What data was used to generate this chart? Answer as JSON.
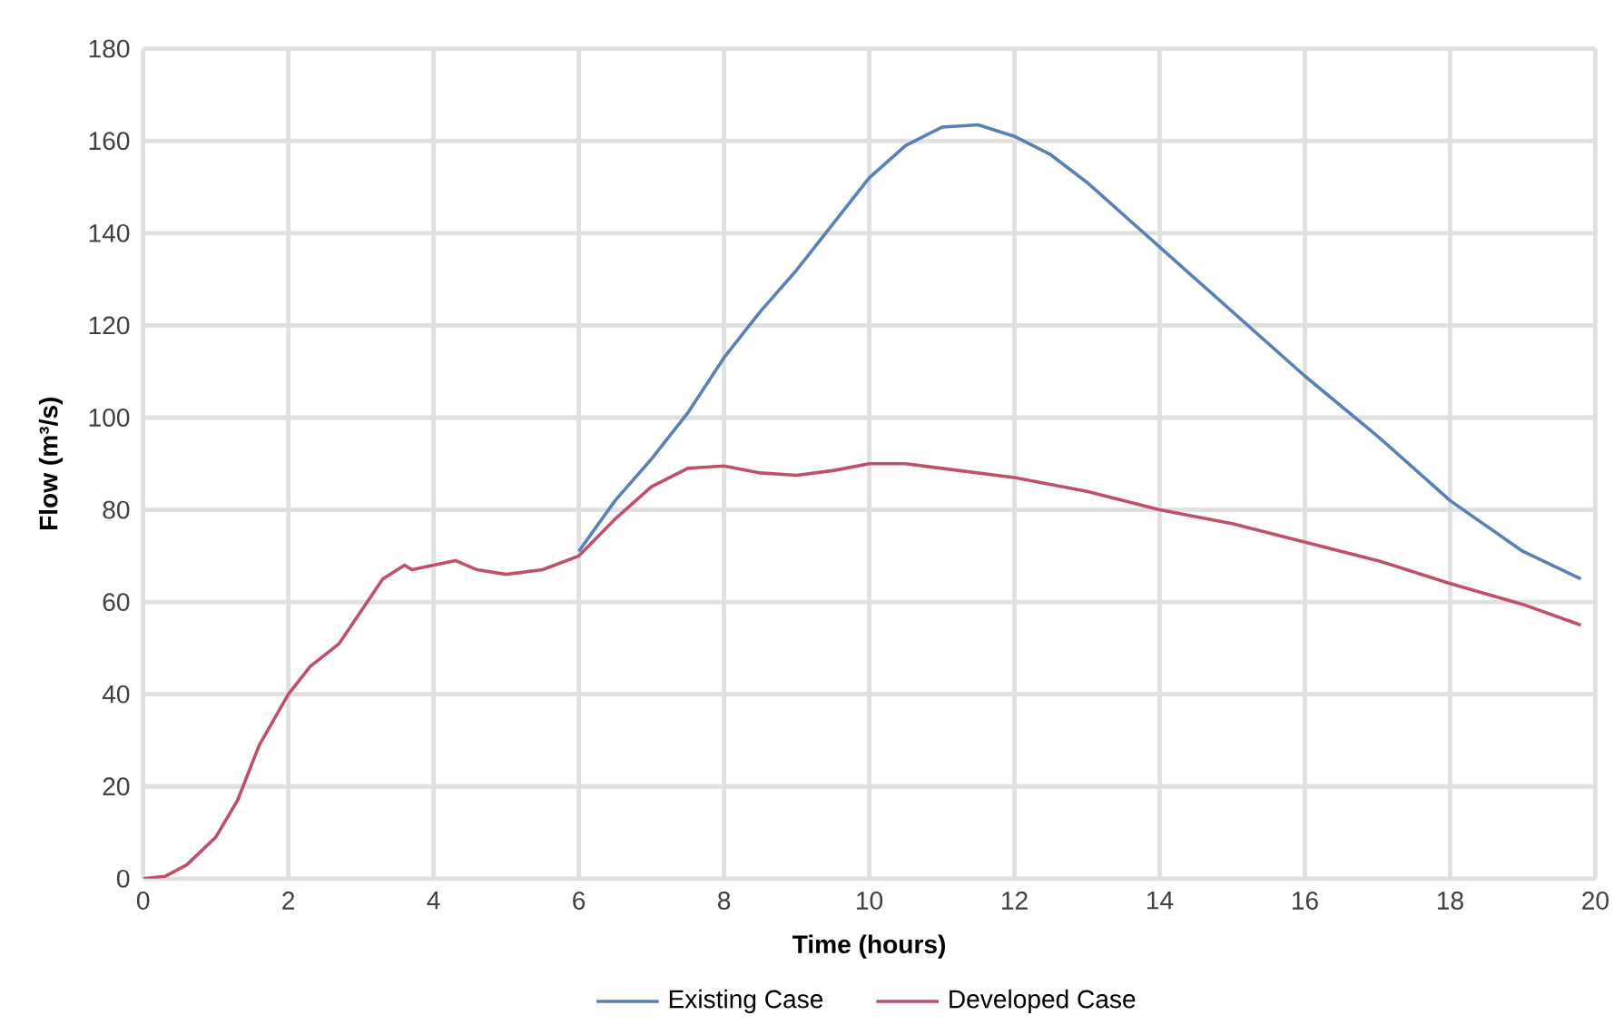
{
  "chart_data": {
    "type": "line",
    "xlabel": "Time (hours)",
    "ylabel": "Flow (m³/s)",
    "xlim": [
      0,
      20
    ],
    "ylim": [
      0,
      180
    ],
    "xticks": [
      0,
      2,
      4,
      6,
      8,
      10,
      12,
      14,
      16,
      18,
      20
    ],
    "yticks": [
      0,
      20,
      40,
      60,
      80,
      100,
      120,
      140,
      160,
      180
    ],
    "grid": true,
    "legend": "bottom",
    "marker": "none",
    "line_style": "solid",
    "series": [
      {
        "name": "Existing Case",
        "color": "#5a80b4",
        "x": [
          6,
          6.5,
          7,
          7.5,
          8,
          8.5,
          9,
          9.5,
          10,
          10.5,
          11,
          11.5,
          12,
          12.5,
          13,
          13.5,
          14,
          15,
          16,
          17,
          18,
          19,
          19.8
        ],
        "values": [
          71,
          82,
          91,
          101,
          113,
          123,
          132,
          142,
          152,
          159,
          163,
          163.5,
          161,
          157,
          151,
          144,
          137,
          123,
          109,
          96,
          82,
          71,
          65
        ]
      },
      {
        "name": "Developed Case",
        "color": "#c0506a",
        "x": [
          0,
          0.3,
          0.6,
          1,
          1.3,
          1.6,
          2,
          2.3,
          2.7,
          3,
          3.3,
          3.6,
          3.7,
          4,
          4.3,
          4.6,
          5,
          5.5,
          6,
          6.5,
          7,
          7.5,
          8,
          8.5,
          9,
          9.5,
          10,
          10.5,
          11,
          12,
          13,
          14,
          15,
          16,
          17,
          18,
          19,
          19.8
        ],
        "values": [
          0,
          0.5,
          3,
          9,
          17,
          29,
          40,
          46,
          51,
          58,
          65,
          68,
          67,
          68,
          69,
          67,
          66,
          67,
          70,
          78,
          85,
          89,
          89.5,
          88,
          87.5,
          88.5,
          90,
          90,
          89,
          87,
          84,
          80,
          77,
          73,
          69,
          64,
          59.5,
          55
        ]
      }
    ]
  }
}
